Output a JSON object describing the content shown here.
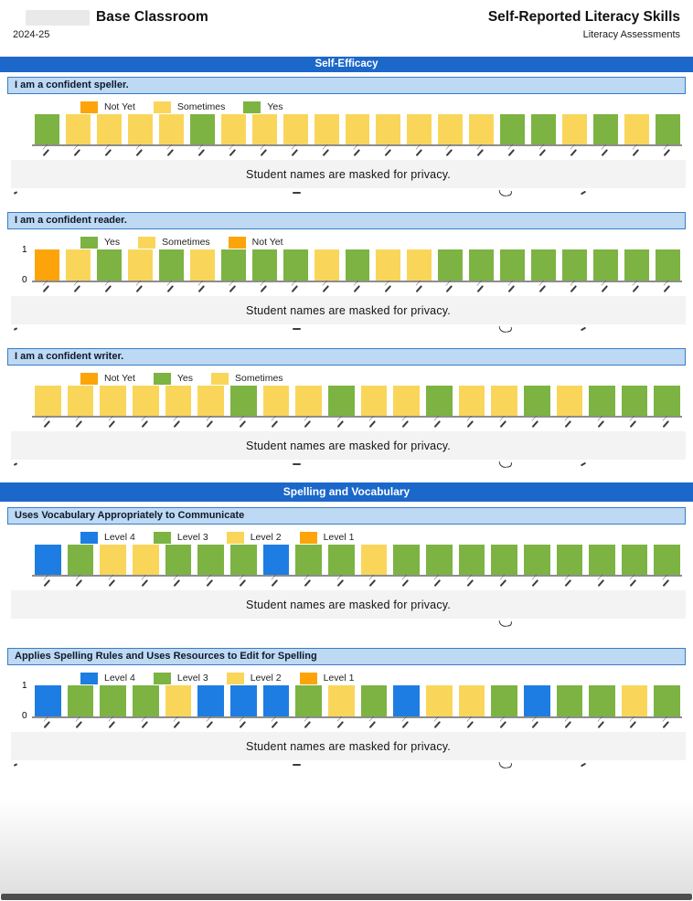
{
  "page": {
    "privacy_note": "Student names are masked for privacy."
  },
  "header": {
    "classroom": "Base Classroom",
    "year": "2024-25",
    "report_title": "Self-Reported Literacy Skills",
    "report_subtitle": "Literacy Assessments",
    "teacher_name_masked": true
  },
  "colors": {
    "banner_blue": "#1b67ca",
    "chart_title_bg": "#bdd9f3",
    "chart_title_border": "#3a7cc4",
    "axis_gray": "#8d8d8d",
    "mask_band_bg": "#f3f3f3",
    "series": {
      "Yes": "#7cb342",
      "Sometimes": "#f9d65a",
      "Not Yet": "#fca40a",
      "Level 4": "#1d7de2",
      "Level 3": "#7cb342",
      "Level 2": "#f9d65a",
      "Level 1": "#fca40a"
    }
  },
  "sections": [
    {
      "title": "Self-Efficacy",
      "chart_indexes": [
        0,
        1,
        2
      ]
    },
    {
      "title": "Spelling and Vocabulary",
      "chart_indexes": [
        3,
        4
      ]
    }
  ],
  "chart_data": [
    {
      "type": "bar",
      "section": "Self-Efficacy",
      "title": "I am a confident speller.",
      "legend": [
        "Not Yet",
        "Sometimes",
        "Yes"
      ],
      "legend_position": "top-left",
      "categories_masked": true,
      "n_students": 21,
      "xlabel": "students (names masked)",
      "ylabel": "",
      "ylim": [
        0,
        1
      ],
      "y_axis_labels_visible": false,
      "y_ticks": [
        "1",
        "0"
      ],
      "values": [
        1,
        1,
        1,
        1,
        1,
        1,
        1,
        1,
        1,
        1,
        1,
        1,
        1,
        1,
        1,
        1,
        1,
        1,
        1,
        1,
        1
      ],
      "responses": [
        "Yes",
        "Sometimes",
        "Sometimes",
        "Sometimes",
        "Sometimes",
        "Yes",
        "Sometimes",
        "Sometimes",
        "Sometimes",
        "Sometimes",
        "Sometimes",
        "Sometimes",
        "Sometimes",
        "Sometimes",
        "Sometimes",
        "Yes",
        "Yes",
        "Sometimes",
        "Yes",
        "Sometimes",
        "Yes"
      ]
    },
    {
      "type": "bar",
      "section": "Self-Efficacy",
      "title": "I am a confident reader.",
      "legend": [
        "Yes",
        "Sometimes",
        "Not Yet"
      ],
      "legend_position": "top-left",
      "categories_masked": true,
      "n_students": 21,
      "xlabel": "students (names masked)",
      "ylabel": "",
      "ylim": [
        0,
        1
      ],
      "y_axis_labels_visible": true,
      "y_ticks": [
        "1",
        "0"
      ],
      "values": [
        1,
        1,
        1,
        1,
        1,
        1,
        1,
        1,
        1,
        1,
        1,
        1,
        1,
        1,
        1,
        1,
        1,
        1,
        1,
        1,
        1
      ],
      "responses": [
        "Not Yet",
        "Sometimes",
        "Yes",
        "Sometimes",
        "Yes",
        "Sometimes",
        "Yes",
        "Yes",
        "Yes",
        "Sometimes",
        "Yes",
        "Sometimes",
        "Sometimes",
        "Yes",
        "Yes",
        "Yes",
        "Yes",
        "Yes",
        "Yes",
        "Yes",
        "Yes"
      ]
    },
    {
      "type": "bar",
      "section": "Self-Efficacy",
      "title": "I am a confident writer.",
      "legend": [
        "Not Yet",
        "Yes",
        "Sometimes"
      ],
      "legend_position": "top-left",
      "categories_masked": true,
      "n_students": 20,
      "xlabel": "students (names masked)",
      "ylabel": "",
      "ylim": [
        0,
        1
      ],
      "y_axis_labels_visible": false,
      "y_ticks": [
        "1",
        "0"
      ],
      "values": [
        1,
        1,
        1,
        1,
        1,
        1,
        1,
        1,
        1,
        1,
        1,
        1,
        1,
        1,
        1,
        1,
        1,
        1,
        1,
        1
      ],
      "responses": [
        "Sometimes",
        "Sometimes",
        "Sometimes",
        "Sometimes",
        "Sometimes",
        "Sometimes",
        "Yes",
        "Sometimes",
        "Sometimes",
        "Yes",
        "Sometimes",
        "Sometimes",
        "Yes",
        "Sometimes",
        "Sometimes",
        "Yes",
        "Sometimes",
        "Yes",
        "Yes",
        "Yes"
      ]
    },
    {
      "type": "bar",
      "section": "Spelling and Vocabulary",
      "title": "Uses Vocabulary Appropriately to Communicate",
      "legend": [
        "Level 4",
        "Level 3",
        "Level 2",
        "Level 1"
      ],
      "legend_position": "top-left",
      "categories_masked": true,
      "n_students": 20,
      "xlabel": "students (names masked)",
      "ylabel": "",
      "ylim": [
        0,
        1
      ],
      "y_axis_labels_visible": false,
      "y_ticks": [
        "1",
        "0"
      ],
      "values": [
        1,
        1,
        1,
        1,
        1,
        1,
        1,
        1,
        1,
        1,
        1,
        1,
        1,
        1,
        1,
        1,
        1,
        1,
        1,
        1
      ],
      "responses": [
        "Level 4",
        "Level 3",
        "Level 2",
        "Level 2",
        "Level 3",
        "Level 3",
        "Level 3",
        "Level 4",
        "Level 3",
        "Level 3",
        "Level 2",
        "Level 3",
        "Level 3",
        "Level 3",
        "Level 3",
        "Level 3",
        "Level 3",
        "Level 3",
        "Level 3",
        "Level 3"
      ]
    },
    {
      "type": "bar",
      "section": "Spelling and Vocabulary",
      "title": "Applies Spelling Rules and Uses Resources to Edit for Spelling",
      "legend": [
        "Level 4",
        "Level 3",
        "Level 2",
        "Level 1"
      ],
      "legend_position": "top-left",
      "categories_masked": true,
      "n_students": 20,
      "xlabel": "students (names masked)",
      "ylabel": "",
      "ylim": [
        0,
        1
      ],
      "y_axis_labels_visible": true,
      "y_ticks": [
        "1",
        "0"
      ],
      "values": [
        1,
        1,
        1,
        1,
        1,
        1,
        1,
        1,
        1,
        1,
        1,
        1,
        1,
        1,
        1,
        1,
        1,
        1,
        1,
        1
      ],
      "responses": [
        "Level 4",
        "Level 3",
        "Level 3",
        "Level 3",
        "Level 2",
        "Level 4",
        "Level 4",
        "Level 4",
        "Level 3",
        "Level 2",
        "Level 3",
        "Level 4",
        "Level 2",
        "Level 2",
        "Level 3",
        "Level 4",
        "Level 3",
        "Level 3",
        "Level 2",
        "Level 3"
      ]
    }
  ]
}
